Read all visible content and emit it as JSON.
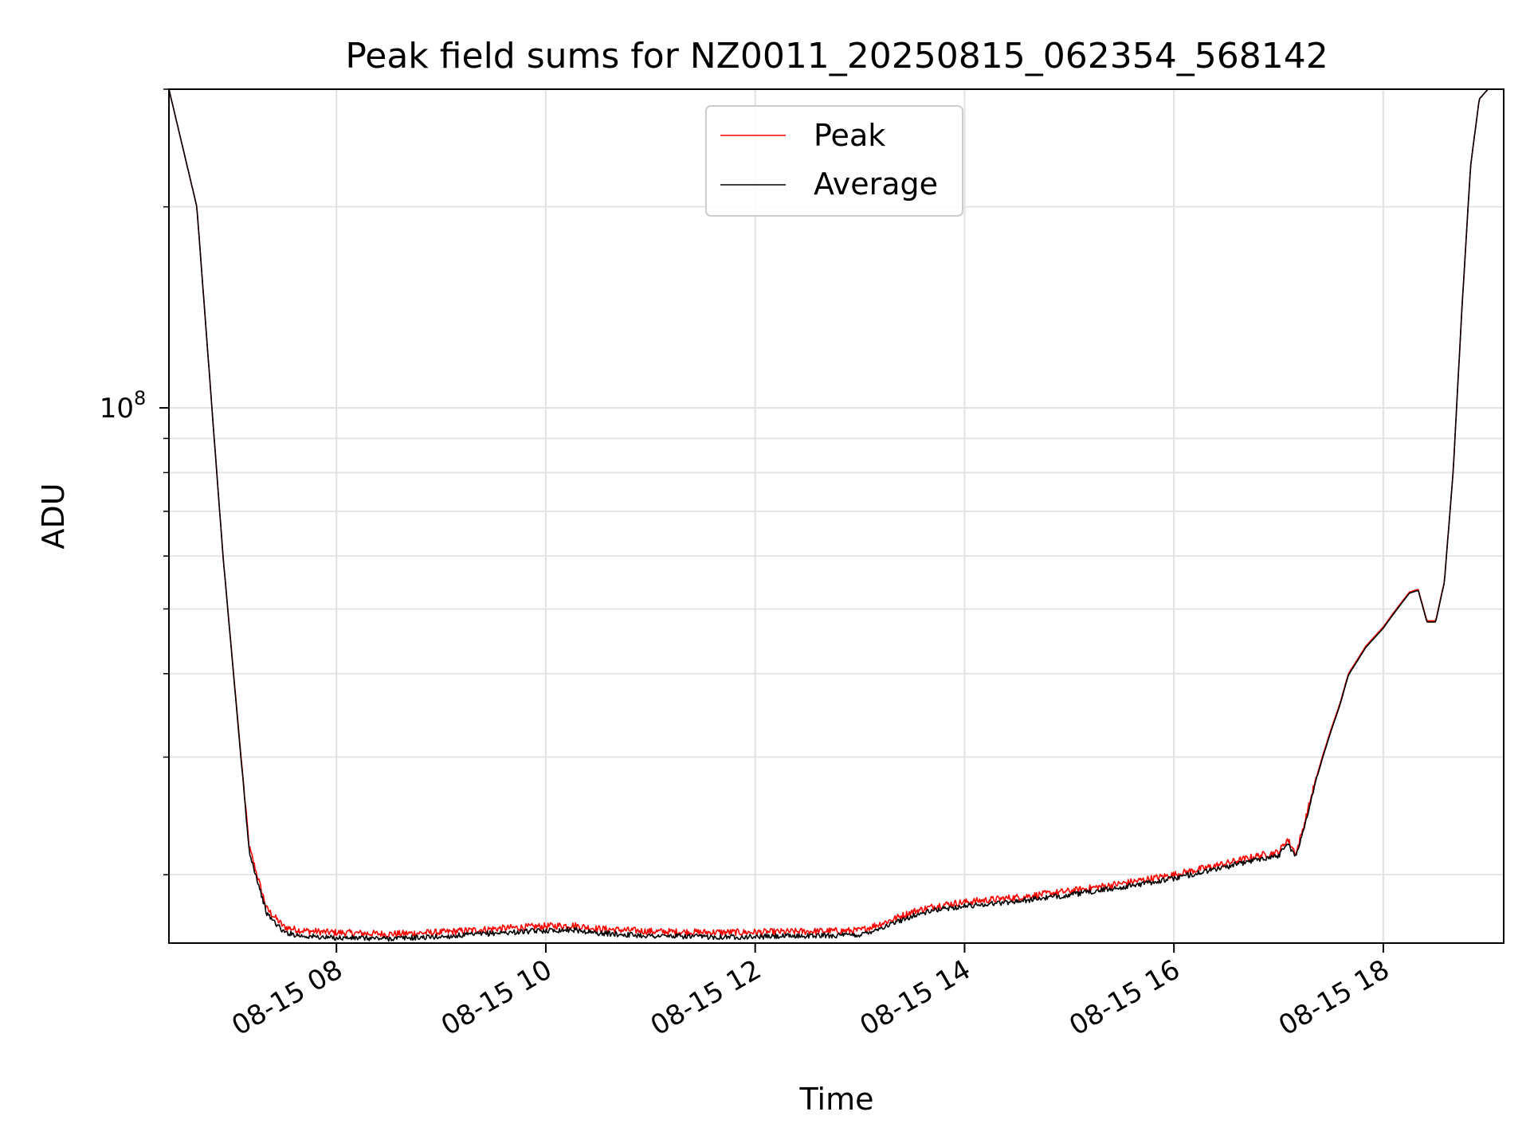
{
  "chart_data": {
    "type": "line",
    "title": "Peak field sums for NZ0011_20250815_062354_568142",
    "xlabel": "Time",
    "ylabel": "ADU",
    "y_scale": "log",
    "ylim": [
      15800000,
      300000000
    ],
    "y_major_ticks": [
      {
        "value": 100000000,
        "base": "10",
        "exponent": "8"
      }
    ],
    "xlim": [
      "2025-08-15T06:24",
      "2025-08-15T19:09"
    ],
    "x_ticks": [
      {
        "value": "2025-08-15T08:00",
        "label": "08-15 08"
      },
      {
        "value": "2025-08-15T10:00",
        "label": "08-15 10"
      },
      {
        "value": "2025-08-15T12:00",
        "label": "08-15 12"
      },
      {
        "value": "2025-08-15T14:00",
        "label": "08-15 14"
      },
      {
        "value": "2025-08-15T16:00",
        "label": "08-15 16"
      },
      {
        "value": "2025-08-15T18:00",
        "label": "08-15 18"
      }
    ],
    "grid": true,
    "legend": "top-center",
    "series": [
      {
        "name": "Peak",
        "color": "#ff0000",
        "noise_fraction": 0.012,
        "x": [
          "2025-08-15T06:24",
          "2025-08-15T06:40",
          "2025-08-15T06:55",
          "2025-08-15T07:10",
          "2025-08-15T07:20",
          "2025-08-15T07:30",
          "2025-08-15T07:40",
          "2025-08-15T07:55",
          "2025-08-15T08:30",
          "2025-08-15T09:00",
          "2025-08-15T09:30",
          "2025-08-15T10:00",
          "2025-08-15T10:15",
          "2025-08-15T10:30",
          "2025-08-15T11:00",
          "2025-08-15T11:30",
          "2025-08-15T12:00",
          "2025-08-15T12:30",
          "2025-08-15T13:00",
          "2025-08-15T13:15",
          "2025-08-15T13:30",
          "2025-08-15T13:45",
          "2025-08-15T14:00",
          "2025-08-15T14:30",
          "2025-08-15T15:00",
          "2025-08-15T15:30",
          "2025-08-15T16:00",
          "2025-08-15T16:30",
          "2025-08-15T16:50",
          "2025-08-15T17:00",
          "2025-08-15T17:05",
          "2025-08-15T17:10",
          "2025-08-15T17:15",
          "2025-08-15T17:20",
          "2025-08-15T17:25",
          "2025-08-15T17:30",
          "2025-08-15T17:35",
          "2025-08-15T17:40",
          "2025-08-15T17:50",
          "2025-08-15T18:00",
          "2025-08-15T18:05",
          "2025-08-15T18:10",
          "2025-08-15T18:15",
          "2025-08-15T18:20",
          "2025-08-15T18:25",
          "2025-08-15T18:30",
          "2025-08-15T18:35",
          "2025-08-15T18:40",
          "2025-08-15T18:45",
          "2025-08-15T18:50",
          "2025-08-15T18:55",
          "2025-08-15T19:00",
          "2025-08-15T19:05",
          "2025-08-15T19:09"
        ],
        "y": [
          300000000,
          200000000,
          60000000,
          22000000,
          17800000,
          16700000,
          16500000,
          16400000,
          16300000,
          16400000,
          16600000,
          16750000,
          16800000,
          16600000,
          16450000,
          16400000,
          16400000,
          16450000,
          16500000,
          17000000,
          17600000,
          18000000,
          18200000,
          18500000,
          18900000,
          19400000,
          20000000,
          20800000,
          21400000,
          21600000,
          22600000,
          21500000,
          24000000,
          27000000,
          30000000,
          33000000,
          36000000,
          40000000,
          44000000,
          47000000,
          49000000,
          51000000,
          53000000,
          53500000,
          48000000,
          48000000,
          55000000,
          80000000,
          140000000,
          230000000,
          290000000,
          300000000,
          300000000,
          300000000
        ]
      },
      {
        "name": "Average",
        "color": "#000000",
        "noise_fraction": 0.009,
        "x": [
          "2025-08-15T06:24",
          "2025-08-15T06:40",
          "2025-08-15T06:55",
          "2025-08-15T07:10",
          "2025-08-15T07:20",
          "2025-08-15T07:30",
          "2025-08-15T07:40",
          "2025-08-15T07:55",
          "2025-08-15T08:30",
          "2025-08-15T09:00",
          "2025-08-15T09:30",
          "2025-08-15T10:00",
          "2025-08-15T10:15",
          "2025-08-15T10:30",
          "2025-08-15T11:00",
          "2025-08-15T11:30",
          "2025-08-15T12:00",
          "2025-08-15T12:30",
          "2025-08-15T13:00",
          "2025-08-15T13:15",
          "2025-08-15T13:30",
          "2025-08-15T13:45",
          "2025-08-15T14:00",
          "2025-08-15T14:30",
          "2025-08-15T15:00",
          "2025-08-15T15:30",
          "2025-08-15T16:00",
          "2025-08-15T16:30",
          "2025-08-15T16:50",
          "2025-08-15T17:00",
          "2025-08-15T17:05",
          "2025-08-15T17:10",
          "2025-08-15T17:15",
          "2025-08-15T17:20",
          "2025-08-15T17:25",
          "2025-08-15T17:30",
          "2025-08-15T17:35",
          "2025-08-15T17:40",
          "2025-08-15T17:50",
          "2025-08-15T18:00",
          "2025-08-15T18:05",
          "2025-08-15T18:10",
          "2025-08-15T18:15",
          "2025-08-15T18:20",
          "2025-08-15T18:25",
          "2025-08-15T18:30",
          "2025-08-15T18:35",
          "2025-08-15T18:40",
          "2025-08-15T18:45",
          "2025-08-15T18:50",
          "2025-08-15T18:55",
          "2025-08-15T19:00",
          "2025-08-15T19:05",
          "2025-08-15T19:09"
        ],
        "y": [
          300000000,
          200000000,
          60000000,
          21700000,
          17500000,
          16400000,
          16200000,
          16100000,
          16050000,
          16150000,
          16350000,
          16500000,
          16550000,
          16350000,
          16200000,
          16150000,
          16150000,
          16200000,
          16250000,
          16750000,
          17350000,
          17750000,
          17950000,
          18250000,
          18650000,
          19150000,
          19750000,
          20550000,
          21150000,
          21350000,
          22350000,
          21250000,
          23750000,
          26800000,
          29800000,
          32800000,
          35800000,
          39800000,
          43800000,
          46800000,
          48800000,
          50800000,
          52800000,
          53300000,
          47800000,
          47800000,
          54800000,
          80000000,
          140000000,
          230000000,
          290000000,
          300000000,
          300000000,
          300000000
        ]
      }
    ]
  }
}
